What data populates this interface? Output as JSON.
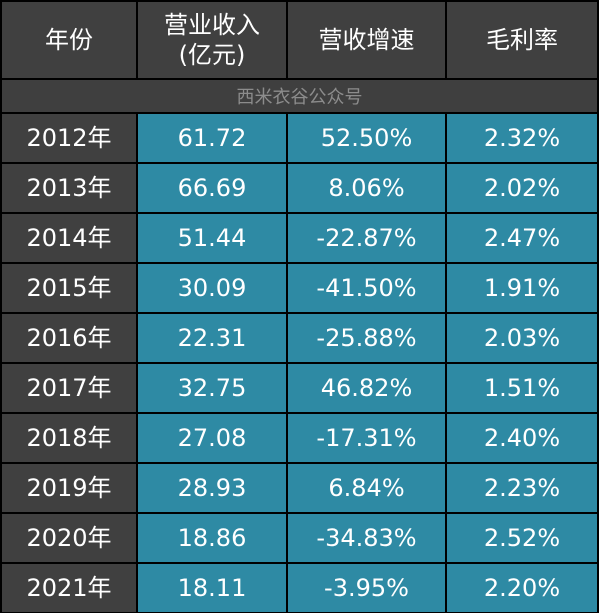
{
  "chart_data": {
    "type": "table",
    "columns": [
      "年份",
      "营业收入\n(亿元)",
      "营收增速",
      "毛利率"
    ],
    "source_note": "西米衣谷公众号",
    "rows": [
      {
        "year": "2012年",
        "revenue": "61.72",
        "growth": "52.50%",
        "margin": "2.32%"
      },
      {
        "year": "2013年",
        "revenue": "66.69",
        "growth": "8.06%",
        "margin": "2.02%"
      },
      {
        "year": "2014年",
        "revenue": "51.44",
        "growth": "-22.87%",
        "margin": "2.47%"
      },
      {
        "year": "2015年",
        "revenue": "30.09",
        "growth": "-41.50%",
        "margin": "1.91%"
      },
      {
        "year": "2016年",
        "revenue": "22.31",
        "growth": "-25.88%",
        "margin": "2.03%"
      },
      {
        "year": "2017年",
        "revenue": "32.75",
        "growth": "46.82%",
        "margin": "1.51%"
      },
      {
        "year": "2018年",
        "revenue": "27.08",
        "growth": "-17.31%",
        "margin": "2.40%"
      },
      {
        "year": "2019年",
        "revenue": "28.93",
        "growth": "6.84%",
        "margin": "2.23%"
      },
      {
        "year": "2020年",
        "revenue": "18.86",
        "growth": "-34.83%",
        "margin": "2.52%"
      },
      {
        "year": "2021年",
        "revenue": "18.11",
        "growth": "-3.95%",
        "margin": "2.20%"
      }
    ]
  },
  "colors": {
    "header_bg": "#404040",
    "year_bg": "#404040",
    "value_bg": "#2e8aa4",
    "note_bg": "#3f3f3f",
    "note_text": "#8c8c8c",
    "grid": "#000000",
    "text": "#ffffff"
  }
}
